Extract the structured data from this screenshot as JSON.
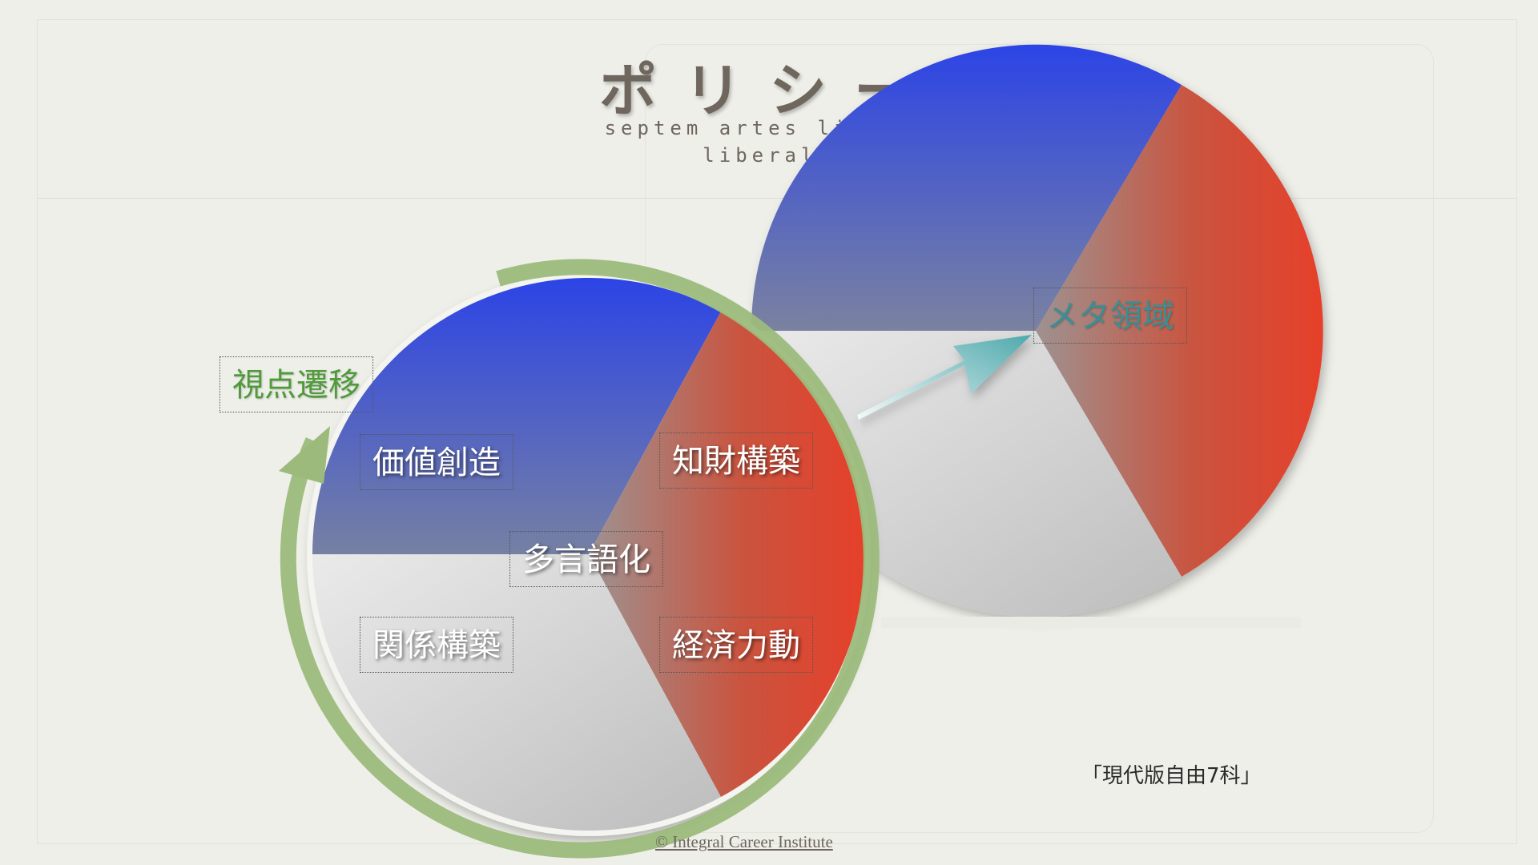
{
  "title": "ポリシー",
  "subtitle_line1": "septem artes liberales :",
  "subtitle_line2": "liberal arts",
  "left_circle": {
    "cycle_label": "視点遷移",
    "segments": [
      "価値創造",
      "知財構築",
      "多言語化",
      "関係構築",
      "経済力動"
    ]
  },
  "right_circle": {
    "center_label": "メタ領域"
  },
  "caption": "「現代版自由7科」",
  "copyright": "© Integral Career Institute",
  "colors": {
    "blue": "#2c44e6",
    "red": "#e6402a",
    "gray": "#d0d0d0",
    "cycle_arrow": "#9cba7c",
    "teal_arrow": "#4fa9ad"
  }
}
